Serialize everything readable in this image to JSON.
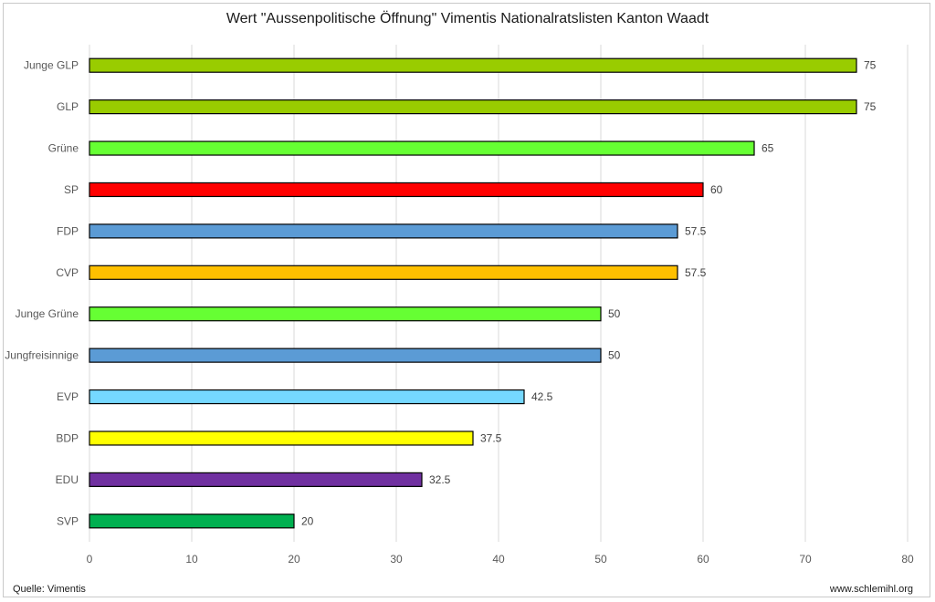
{
  "chart_data": {
    "type": "bar",
    "orientation": "horizontal",
    "title": "Wert \"Aussenpolitische Öffnung\" Vimentis Nationalratslisten Kanton Waadt",
    "categories": [
      "Junge GLP",
      "GLP",
      "Grüne",
      "SP",
      "FDP",
      "CVP",
      "Junge Grüne",
      "Jungfreisinnige",
      "EVP",
      "BDP",
      "EDU",
      "SVP"
    ],
    "values": [
      75,
      75,
      65,
      60,
      57.5,
      57.5,
      50,
      50,
      42.5,
      37.5,
      32.5,
      20
    ],
    "value_labels": [
      "75",
      "75",
      "65",
      "60",
      "57.5",
      "57.5",
      "50",
      "50",
      "42.5",
      "37.5",
      "32.5",
      "20"
    ],
    "colors": [
      "#99cc00",
      "#99cc00",
      "#66ff33",
      "#ff0000",
      "#5b9bd5",
      "#ffc000",
      "#66ff33",
      "#5b9bd5",
      "#75d8ff",
      "#ffff00",
      "#7030a0",
      "#00b050"
    ],
    "xlim": [
      0,
      80
    ],
    "x_ticks": [
      "0",
      "10",
      "20",
      "30",
      "40",
      "50",
      "60",
      "70",
      "80"
    ],
    "xlabel": "",
    "ylabel": "",
    "grid": "vertical",
    "legend": "none"
  },
  "footer": {
    "source": "Quelle: Vimentis",
    "website": "www.schlemihl.org"
  }
}
